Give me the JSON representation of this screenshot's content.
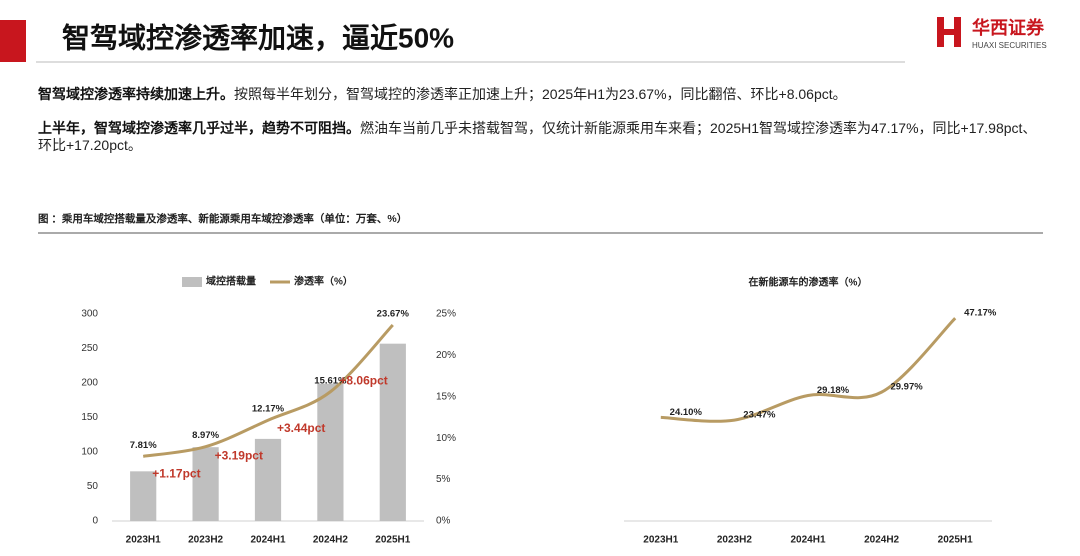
{
  "header": {
    "title": "智驾域控渗透率加速，逼近50%",
    "logo_cn": "华西证券",
    "logo_en": "HUAXI SECURITIES"
  },
  "paragraphs": [
    {
      "lead": "智驾域控渗透率持续加速上升。",
      "text": "按照每半年划分，智驾域控的渗透率正加速上升；2025年H1为23.67%，同比翻倍、环比+8.06pct。"
    },
    {
      "lead": "上半年，智驾域控渗透率几乎过半，趋势不可阻挡。",
      "text": "燃油车当前几乎未搭载智驾，仅统计新能源乘用车来看；2025H1智驾域控渗透率为47.17%，同比+17.98pct、环比+17.20pct。"
    }
  ],
  "figure_caption": "图 ：乘用车域控搭载量及渗透率、新能源乘用车域控渗透率（单位：万套、%）",
  "chart_data": [
    {
      "type": "combo",
      "categories": [
        "2023H1",
        "2023H2",
        "2024H1",
        "2024H2",
        "2025H1"
      ],
      "series": [
        {
          "name": "域控搭载量",
          "type": "bar",
          "color": "#bfbfbf",
          "values": [
            72,
            107,
            119,
            199,
            257
          ]
        },
        {
          "name": "渗透率（%）",
          "type": "line",
          "axis": "y2",
          "color": "#b89b63",
          "values": [
            7.81,
            8.97,
            12.17,
            15.61,
            23.67
          ],
          "value_labels": [
            "7.81%",
            "8.97%",
            "12.17%",
            "15.61%",
            "23.67%"
          ]
        }
      ],
      "ylim": [
        0,
        300
      ],
      "yticks": [
        0,
        50,
        100,
        150,
        200,
        250,
        300
      ],
      "y2lim": [
        0,
        25
      ],
      "y2ticks": [
        {
          "value": 0,
          "label": "0%"
        },
        {
          "value": 5,
          "label": "5%"
        },
        {
          "value": 10,
          "label": "10%"
        },
        {
          "value": 15,
          "label": "15%"
        },
        {
          "value": 20,
          "label": "20%"
        },
        {
          "value": 25,
          "label": "25%"
        }
      ],
      "annotations": [
        "+1.17pct",
        "+3.19pct",
        "+3.44pct",
        "+8.06pct"
      ],
      "annotation_color": "#c0392b"
    },
    {
      "type": "line",
      "title": "在新能源车的渗透率（%）",
      "categories": [
        "2023H1",
        "2023H2",
        "2024H1",
        "2024H2",
        "2025H1"
      ],
      "series": [
        {
          "name": "在新能源车的渗透率（%）",
          "color": "#b89b63",
          "values": [
            24.1,
            23.47,
            29.18,
            29.97,
            47.17
          ],
          "value_labels": [
            "24.10%",
            "23.47%",
            "29.18%",
            "29.97%",
            "47.17%"
          ]
        }
      ],
      "ylim": [
        0,
        50
      ]
    }
  ]
}
